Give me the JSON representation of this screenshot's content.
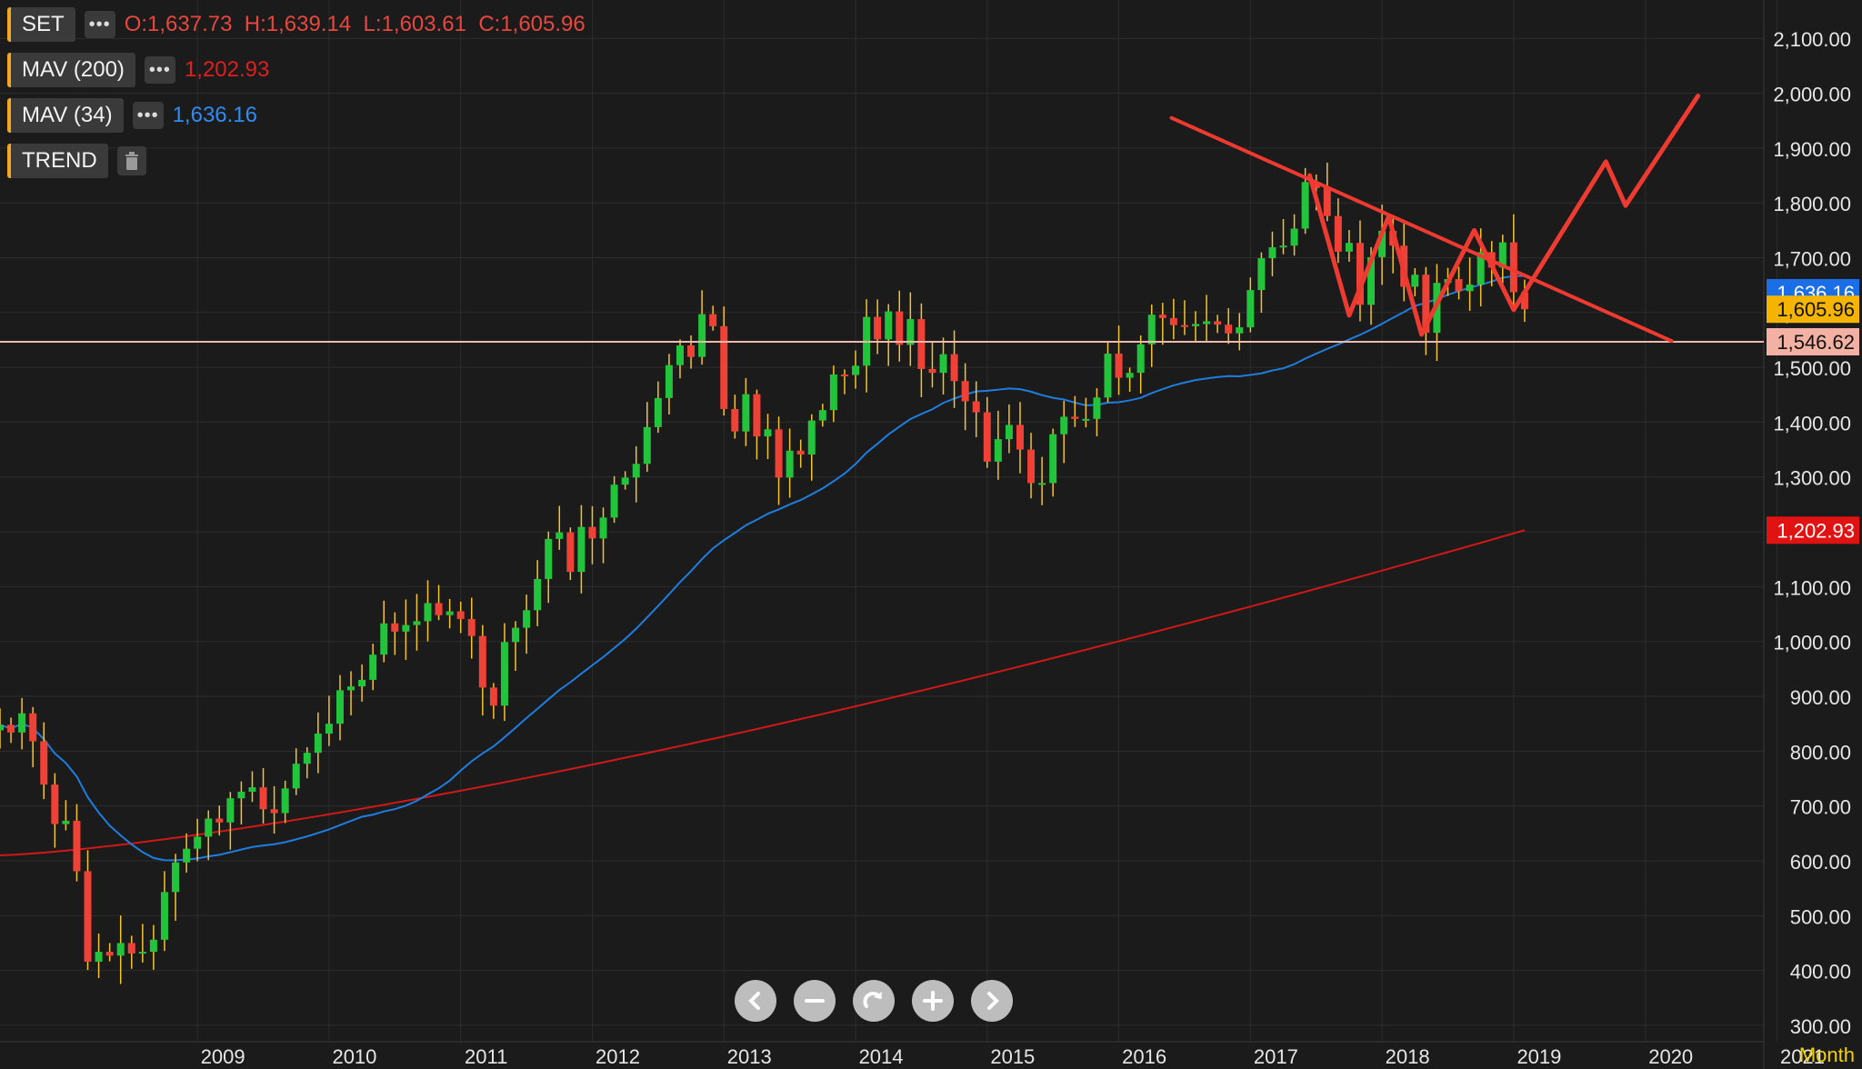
{
  "legend": {
    "symbol": {
      "label": "SET",
      "ohlc": "O:1,637.73  H:1,639.14  L:1,603.61  C:1,605.96",
      "color": "#e8473e"
    },
    "mav200": {
      "label": "MAV (200)",
      "value": "1,202.93",
      "color": "#e01e1e"
    },
    "mav34": {
      "label": "MAV (34)",
      "value": "1,636.16",
      "color": "#2f8cf5"
    },
    "trend": {
      "label": "TREND"
    },
    "more_icon": "more-dots-icon",
    "delete_icon": "trash-icon"
  },
  "navigation": {
    "buttons": [
      {
        "name": "scroll-left-button",
        "icon": "chevron-left-icon"
      },
      {
        "name": "zoom-out-button",
        "icon": "minus-icon"
      },
      {
        "name": "reset-button",
        "icon": "redo-icon"
      },
      {
        "name": "zoom-in-button",
        "icon": "plus-icon"
      },
      {
        "name": "scroll-right-button",
        "icon": "chevron-right-icon"
      }
    ]
  },
  "period_label": "Month",
  "colors": {
    "up": "#21c43a",
    "down": "#ef4136",
    "mav200": "#d01818",
    "mav34": "#1f7de0",
    "trend": "#ee3a30",
    "hline": "#f2b8aa",
    "background": "#1b1b1b",
    "grid": "#2c2c2c",
    "axis_text": "#e6e6e6"
  },
  "chart_data": {
    "type": "candlestick",
    "ylim": [
      270,
      2170
    ],
    "y_ticks": [
      "300.00",
      "400.00",
      "500.00",
      "600.00",
      "700.00",
      "800.00",
      "900.00",
      "1,000.00",
      "1,100.00",
      "1,200.00",
      "1,300.00",
      "1,400.00",
      "1,500.00",
      "1,600.00",
      "1,700.00",
      "1,800.00",
      "1,900.00",
      "2,000.00",
      "2,100.00"
    ],
    "x_ticks": [
      "2009",
      "2010",
      "2011",
      "2012",
      "2013",
      "2014",
      "2015",
      "2016",
      "2017",
      "2018",
      "2019",
      "2020",
      "2021"
    ],
    "x_range": [
      2008.0,
      2021.4
    ],
    "price_labels": [
      {
        "text": "1,636.16",
        "value": 1636.16,
        "bg": "#1a6fe8",
        "fg": "#ffffff"
      },
      {
        "text": "1,605.96",
        "value": 1605.96,
        "bg": "#f5b400",
        "fg": "#111111"
      },
      {
        "text": "1,546.62",
        "value": 1546.62,
        "bg": "#f3b1a4",
        "fg": "#111111"
      },
      {
        "text": "1,202.93",
        "value": 1202.93,
        "bg": "#e01212",
        "fg": "#ffffff"
      }
    ],
    "horizontal_line": {
      "value": 1546.62
    },
    "candle_start": 2008.0,
    "candle_step": 0.08333,
    "closes": [
      848,
      834,
      869,
      818,
      739,
      667,
      673,
      581,
      416,
      434,
      427,
      450,
      431,
      434,
      456,
      543,
      597,
      622,
      644,
      677,
      670,
      714,
      726,
      734,
      694,
      687,
      732,
      777,
      797,
      832,
      850,
      911,
      918,
      930,
      976,
      1033,
      1018,
      1030,
      1037,
      1070,
      1048,
      1055,
      1041,
      1010,
      916,
      883,
      999,
      1025,
      1057,
      1114,
      1187,
      1199,
      1127,
      1209,
      1188,
      1226,
      1286,
      1299,
      1324,
      1391,
      1444,
      1504,
      1540,
      1519,
      1597,
      1575,
      1424,
      1383,
      1451,
      1374,
      1387,
      1299,
      1348,
      1341,
      1403,
      1422,
      1487,
      1486,
      1503,
      1592,
      1551,
      1602,
      1541,
      1588,
      1497,
      1490,
      1524,
      1475,
      1438,
      1418,
      1328,
      1369,
      1395,
      1350,
      1289,
      1289,
      1378,
      1410,
      1406,
      1406,
      1445,
      1525,
      1481,
      1490,
      1542,
      1596,
      1590,
      1577,
      1575,
      1579,
      1584,
      1578,
      1562,
      1573,
      1641,
      1699,
      1719,
      1722,
      1753,
      1838,
      1827,
      1776,
      1711,
      1727,
      1614,
      1701,
      1749,
      1722,
      1647,
      1669,
      1563,
      1654,
      1661,
      1639,
      1651,
      1710,
      1682,
      1728,
      1637,
      1606
    ]
  }
}
